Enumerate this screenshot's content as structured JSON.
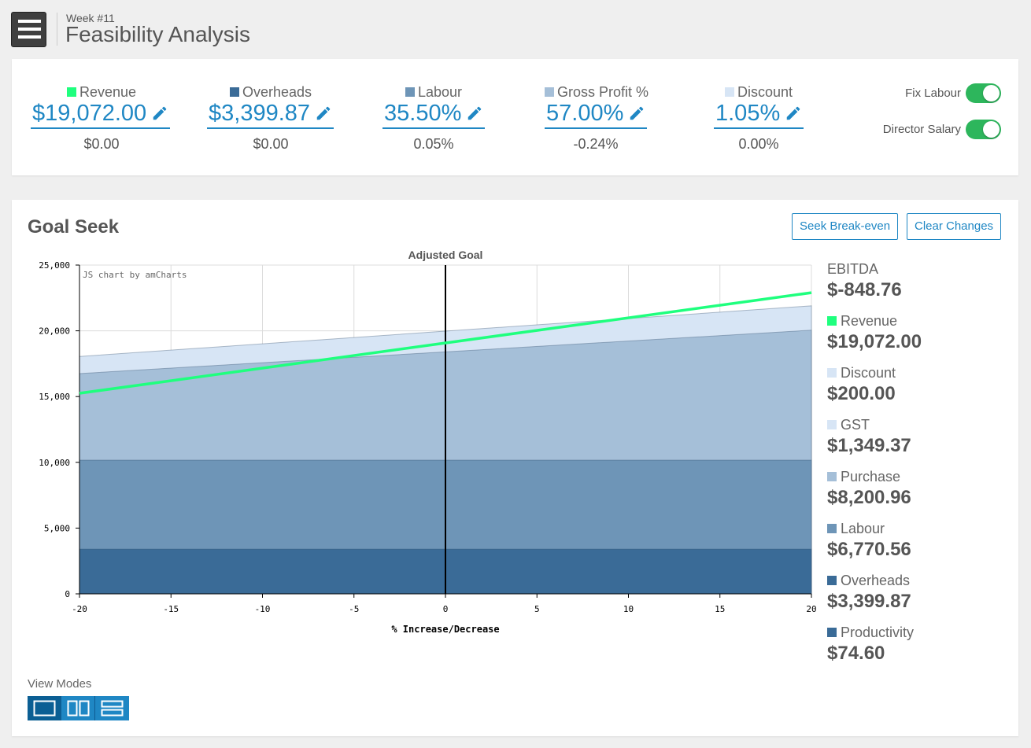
{
  "header": {
    "week": "Week #11",
    "title": "Feasibility Analysis"
  },
  "metrics": [
    {
      "label": "Revenue",
      "value": "$19,072.00",
      "delta": "$0.00",
      "color": "#1fff7e"
    },
    {
      "label": "Overheads",
      "value": "$3,399.87",
      "delta": "$0.00",
      "color": "#3a6b97"
    },
    {
      "label": "Labour",
      "value": "35.50%",
      "delta": "0.05%",
      "color": "#6e95b7"
    },
    {
      "label": "Gross Profit %",
      "value": "57.00%",
      "delta": "-0.24%",
      "color": "#a5bfd8"
    },
    {
      "label": "Discount",
      "value": "1.05%",
      "delta": "0.00%",
      "color": "#d7e5f5"
    }
  ],
  "toggles": [
    {
      "label": "Fix Labour",
      "on": true
    },
    {
      "label": "Director Salary",
      "on": true
    }
  ],
  "goal_seek": {
    "title": "Goal Seek",
    "seek_button": "Seek Break-even",
    "clear_button": "Clear Changes",
    "view_modes_label": "View Modes"
  },
  "legend": [
    {
      "name": "EBITDA",
      "value": "$-848.76",
      "color": ""
    },
    {
      "name": "Revenue",
      "value": "$19,072.00",
      "color": "#1fff7e"
    },
    {
      "name": "Discount",
      "value": "$200.00",
      "color": "#d7e5f5"
    },
    {
      "name": "GST",
      "value": "$1,349.37",
      "color": "#d7e5f5"
    },
    {
      "name": "Purchase",
      "value": "$8,200.96",
      "color": "#a5bfd8"
    },
    {
      "name": "Labour",
      "value": "$6,770.56",
      "color": "#6e95b7"
    },
    {
      "name": "Overheads",
      "value": "$3,399.87",
      "color": "#3a6b97"
    },
    {
      "name": "Productivity",
      "value": "$74.60",
      "color": "#3a6b97"
    }
  ],
  "chart_data": {
    "type": "area",
    "title": "Adjusted Goal",
    "xlabel": "% Increase/Decrease",
    "ylabel": "",
    "credit": "JS chart by amCharts",
    "x": [
      -20,
      20
    ],
    "xlim": [
      -20,
      20
    ],
    "ylim": [
      0,
      25000
    ],
    "x_ticks": [
      "-20",
      "-15",
      "-10",
      "-5",
      "0",
      "5",
      "10",
      "15",
      "20"
    ],
    "y_ticks": [
      "0",
      "5,000",
      "10,000",
      "15,000",
      "20,000",
      "25,000"
    ],
    "guide_x": 0,
    "areas": [
      {
        "name": "Overheads",
        "color": "#3a6b97",
        "values": [
          3400,
          3400
        ]
      },
      {
        "name": "Labour",
        "color": "#6e95b7",
        "values": [
          10170,
          10170
        ]
      },
      {
        "name": "Purchase",
        "color": "#a5bfd8",
        "values": [
          16750,
          20050
        ]
      },
      {
        "name": "GST / Discount",
        "color": "#d7e5f5",
        "values": [
          18050,
          21900
        ]
      }
    ],
    "series": [
      {
        "name": "Revenue",
        "color": "#1fff7e",
        "values": [
          15250,
          22900
        ]
      }
    ]
  }
}
